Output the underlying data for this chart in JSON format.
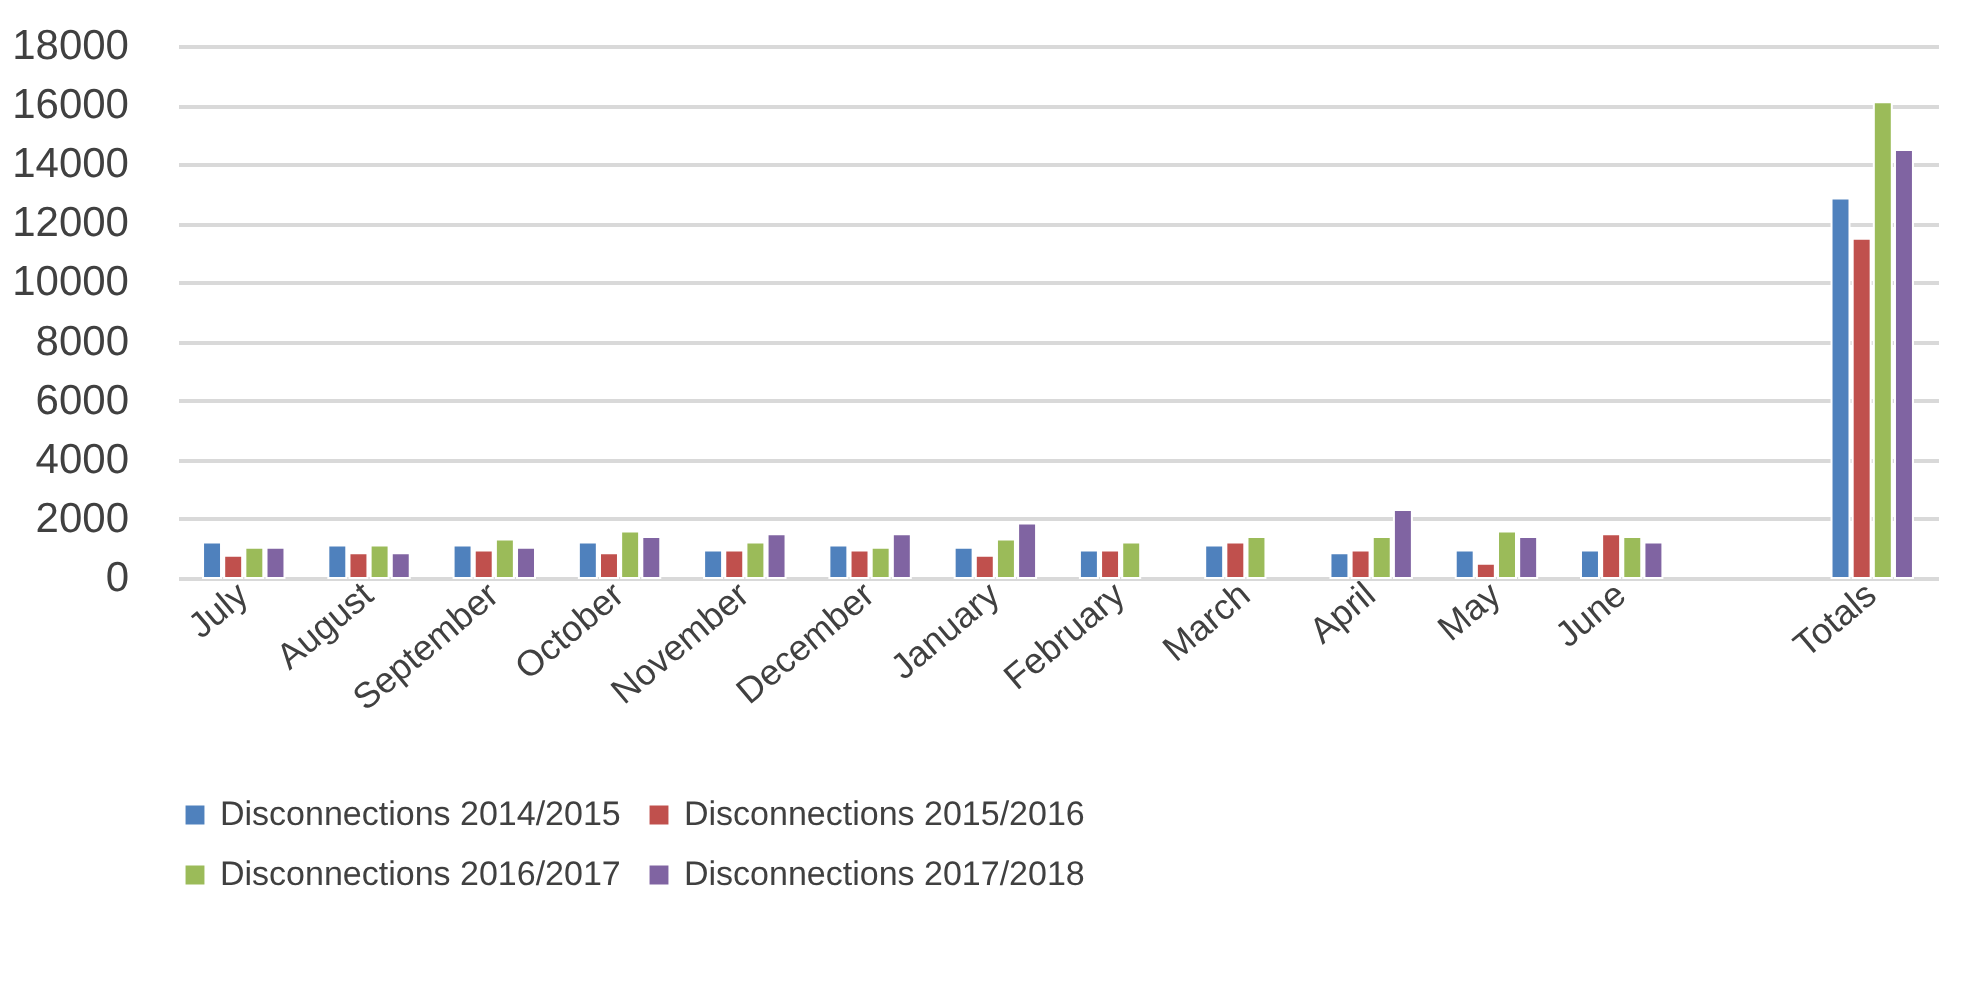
{
  "chart_data": {
    "type": "bar",
    "categories": [
      "July",
      "August",
      "September",
      "October",
      "November",
      "December",
      "January",
      "February",
      "March",
      "April",
      "May",
      "June",
      null,
      "Totals"
    ],
    "series": [
      {
        "name": "Disconnections 2014/2015",
        "color": "#4f81bd",
        "values": [
          1200,
          1100,
          1100,
          1200,
          930,
          1100,
          1020,
          930,
          1100,
          840,
          930,
          930,
          null,
          12840
        ]
      },
      {
        "name": "Disconnections 2015/2016",
        "color": "#c0504d",
        "values": [
          750,
          840,
          930,
          840,
          930,
          930,
          750,
          930,
          1200,
          930,
          480,
          1480,
          null,
          11480
        ]
      },
      {
        "name": "Disconnections 2016/2017",
        "color": "#9bbb59",
        "values": [
          1020,
          1100,
          1300,
          1570,
          1200,
          1020,
          1300,
          1200,
          1390,
          1390,
          1570,
          1390,
          null,
          16100
        ]
      },
      {
        "name": "Disconnections 2017/2018",
        "color": "#8064a2",
        "values": [
          1020,
          840,
          1020,
          1390,
          1480,
          1480,
          1840,
          null,
          null,
          2300,
          1390,
          1200,
          null,
          14480
        ]
      }
    ],
    "ylim": [
      0,
      18000
    ],
    "yticks": [
      0,
      2000,
      4000,
      6000,
      8000,
      10000,
      12000,
      14000,
      16000,
      18000
    ],
    "grid": "y",
    "legend": "bottom"
  }
}
